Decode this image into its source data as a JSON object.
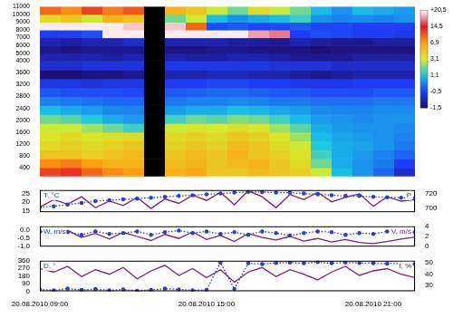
{
  "chart_data": [
    {
      "type": "heatmap",
      "x_edges": [
        9,
        9.75,
        10.5,
        11.25,
        12,
        12.75,
        13.5,
        14.25,
        15,
        15.75,
        16.5,
        17.25,
        18,
        18.75,
        19.5,
        20.25,
        21,
        21.75,
        22.5
      ],
      "y_edges": [
        100,
        400,
        700,
        1000,
        1300,
        1600,
        1900,
        2200,
        2500,
        2800,
        3100,
        3400,
        3700,
        4000,
        5000,
        6000,
        7000,
        8000,
        9000,
        10000,
        11000
      ],
      "cells": [
        [
          12,
          13,
          10,
          8,
          7,
          null,
          6,
          6.5,
          5,
          5,
          5.5,
          5,
          4.5,
          3,
          1,
          0.5,
          0,
          -0.8
        ],
        [
          8,
          9,
          7,
          6,
          6,
          null,
          5.5,
          6,
          5,
          5.5,
          6,
          5,
          4,
          2,
          0.8,
          0.5,
          0.2,
          -0.5
        ],
        [
          5,
          5,
          4.5,
          5,
          5.5,
          null,
          5,
          5.5,
          5,
          6,
          5,
          4.5,
          3.5,
          1.5,
          0.8,
          0.6,
          0.3,
          0
        ],
        [
          4,
          4.5,
          4,
          4.5,
          5,
          null,
          4.5,
          5,
          4.5,
          5.5,
          5,
          4,
          3,
          1.2,
          0.8,
          0.7,
          0.5,
          0.2
        ],
        [
          3.5,
          4,
          3.5,
          3.8,
          4,
          null,
          4,
          4.5,
          4,
          5,
          4.5,
          3.5,
          2.5,
          1,
          0.7,
          0.6,
          0.5,
          0.3
        ],
        [
          3,
          3,
          2.5,
          2,
          1.5,
          null,
          3,
          3.5,
          3.2,
          3.8,
          3.5,
          2.5,
          1.8,
          0.8,
          0.6,
          0.5,
          0.5,
          0.4
        ],
        [
          2,
          1.8,
          1.2,
          0.8,
          0.6,
          null,
          1.5,
          2,
          1.8,
          2.2,
          2,
          1.5,
          1,
          0.6,
          0.5,
          0.4,
          0.5,
          0.5
        ],
        [
          1,
          0.8,
          0.6,
          0.4,
          0.3,
          null,
          0.6,
          0.8,
          0.8,
          1,
          0.9,
          0.7,
          0.6,
          0.4,
          0.3,
          0.3,
          0.4,
          0.4
        ],
        [
          0.3,
          0.2,
          0.1,
          0,
          0,
          null,
          0.2,
          0.3,
          0.3,
          0.4,
          0.3,
          0.2,
          0.2,
          0.1,
          0.1,
          0.1,
          0.2,
          0.2
        ],
        [
          -0.2,
          -0.3,
          -0.3,
          -0.3,
          -0.4,
          null,
          -0.2,
          -0.1,
          0,
          0,
          -0.1,
          -0.2,
          -0.2,
          -0.3,
          -0.3,
          -0.3,
          -0.2,
          -0.2
        ],
        [
          -0.6,
          -0.6,
          -0.7,
          -0.6,
          -0.6,
          null,
          -0.5,
          -0.5,
          -0.4,
          -0.4,
          -0.5,
          -0.5,
          -0.6,
          -0.6,
          -0.6,
          -0.5,
          -0.5,
          -0.5
        ],
        [
          -1.4,
          -1.4,
          -1.3,
          -1.3,
          -1.2,
          null,
          -1,
          -1,
          -0.9,
          -0.9,
          -1,
          -1,
          -1.1,
          -1.2,
          -1.1,
          -1,
          -1,
          -1
        ],
        [
          -0.8,
          -0.8,
          -0.7,
          -0.7,
          -0.7,
          null,
          -0.6,
          -0.6,
          -0.6,
          -0.6,
          -0.6,
          -0.7,
          -0.7,
          -0.7,
          -0.8,
          -0.8,
          -0.8,
          -0.8
        ],
        [
          -1,
          -1,
          -1,
          -1.1,
          -1,
          null,
          -1,
          -1.1,
          -1.1,
          -1,
          -1,
          -1.1,
          -1.2,
          -1.2,
          -1.2,
          -1.1,
          -1.1,
          -1.1
        ],
        [
          -1.2,
          -1.3,
          -1.2,
          -1.2,
          -1.2,
          null,
          -1.3,
          -1.3,
          -1.2,
          -1.2,
          -1.3,
          -1.3,
          -1.3,
          -1.4,
          -1.3,
          -1.3,
          -1.3,
          -1.3
        ],
        [
          -1,
          -1.1,
          -1,
          -1,
          -0.8,
          null,
          -1,
          -1,
          -1,
          -1.1,
          -1.1,
          -1.2,
          -1,
          -1.1,
          -1.2,
          -1.2,
          -1.1,
          -1.1
        ],
        [
          -0.5,
          -0.5,
          -0.3,
          20,
          20,
          null,
          20,
          20,
          20,
          20,
          18,
          17,
          -0.5,
          -0.3,
          -0.4,
          -0.5,
          -0.5,
          -0.6
        ],
        [
          20,
          20,
          20,
          20,
          19,
          null,
          19,
          10,
          -0.3,
          -0.2,
          -0.4,
          -0.3,
          -0.2,
          -0.4,
          -0.4,
          -0.5,
          -0.5,
          -0.5
        ],
        [
          4,
          5,
          3,
          6,
          5,
          null,
          2,
          3,
          1,
          0.5,
          0.8,
          1,
          1.5,
          0.5,
          0.3,
          0.4,
          0.3,
          0.5
        ],
        [
          10,
          8,
          12,
          9,
          11,
          null,
          6,
          5,
          3,
          2,
          4,
          3,
          2,
          1,
          0.5,
          1,
          0.8,
          0.6
        ]
      ],
      "xlim": [
        9,
        22.5
      ],
      "ylim": [
        100,
        11000
      ],
      "yticks": [
        400,
        800,
        1200,
        1600,
        2000,
        2400,
        2800,
        3200,
        3600,
        4000,
        5000,
        6000,
        7000,
        8000,
        9000,
        10000,
        11000
      ],
      "tick_labels": "y",
      "grid": false,
      "colorbar": {
        "range": [
          -1.5,
          20.5
        ],
        "ticks": [
          {
            "value": -1.5,
            "label": "-1,5"
          },
          {
            "value": -0.5,
            "label": "-0,5"
          },
          {
            "value": 1.1,
            "label": "1,1"
          },
          {
            "value": 3.1,
            "label": "3,1"
          },
          {
            "value": 6.9,
            "label": "6,9"
          },
          {
            "value": 14.5,
            "label": "14,5"
          },
          {
            "value": 20.5,
            "label": "+20,5"
          }
        ],
        "colors": [
          "#1c0b66",
          "#1f3df5",
          "#19c6e6",
          "#d6ec2e",
          "#ffa012",
          "#e4162c",
          "#ffffff"
        ]
      }
    },
    {
      "type": "line",
      "x": [
        9,
        9.5,
        10,
        10.5,
        11,
        11.5,
        12,
        12.5,
        13,
        13.5,
        14,
        14.5,
        15,
        15.5,
        16,
        16.5,
        17,
        17.5,
        18,
        18.5,
        19,
        19.5,
        20,
        20.5,
        21,
        21.5,
        22,
        22.5
      ],
      "xlim": [
        9,
        22.5
      ],
      "ylim": [
        14,
        27
      ],
      "yticks": [
        15,
        20,
        25
      ],
      "y2lim": [
        695,
        725
      ],
      "y2ticks": [
        700,
        720
      ],
      "grid": false,
      "series": [
        {
          "name": "T, °C",
          "color": "#2a3cd0",
          "marker": "circle",
          "line_style": "dotted",
          "values": [
            17,
            17.5,
            18.5,
            19.5,
            20.5,
            21,
            21.5,
            22,
            22.5,
            23,
            23.5,
            24,
            24.5,
            25,
            25.5,
            26,
            25.8,
            25.5,
            25.5,
            25,
            24.5,
            24,
            23.5,
            23.5,
            23,
            22.8,
            22.5,
            22.3
          ]
        },
        {
          "name": "P",
          "color": "#7b1f7b",
          "marker": "none",
          "line_style": "solid",
          "axis": "y2",
          "values": [
            702,
            712,
            706,
            716,
            701,
            710,
            704,
            715,
            700,
            713,
            707,
            718,
            711,
            722,
            705,
            724,
            716,
            701,
            719,
            712,
            722,
            709,
            715,
            720,
            703,
            716,
            710,
            712
          ]
        }
      ]
    },
    {
      "type": "line",
      "x": [
        9,
        9.5,
        10,
        10.5,
        11,
        11.5,
        12,
        12.5,
        13,
        13.5,
        14,
        14.5,
        15,
        15.5,
        16,
        16.5,
        17,
        17.5,
        18,
        18.5,
        19,
        19.5,
        20,
        20.5,
        21,
        21.5,
        22,
        22.5
      ],
      "xlim": [
        9,
        22.5
      ],
      "ylim": [
        -1,
        0.2
      ],
      "yticks": [
        {
          "value": -1,
          "label": "-1.0"
        },
        -0.5,
        {
          "value": 0,
          "label": "0.0"
        }
      ],
      "y2lim": [
        0,
        4
      ],
      "y2ticks": [
        0,
        2,
        4
      ],
      "grid": false,
      "series": [
        {
          "name": "W, m/s",
          "color": "#2a3cd0",
          "marker": "circle",
          "line_style": "dotted",
          "values": [
            -0.1,
            -0.2,
            -0.15,
            -0.3,
            -0.1,
            -0.25,
            -0.2,
            -0.1,
            -0.3,
            -0.15,
            -0.05,
            -0.2,
            -0.1,
            -0.25,
            -0.15,
            -0.3,
            -0.1,
            -0.2,
            -0.35,
            -0.2,
            -0.1,
            -0.15,
            -0.3,
            -0.2,
            -0.25,
            -0.1,
            -0.2,
            -0.15
          ]
        },
        {
          "name": "V, m/s",
          "color": "#7b1f7b",
          "marker": "none",
          "line_style": "solid",
          "axis": "y2",
          "values": [
            3,
            2.5,
            3.2,
            1.8,
            2.6,
            1.5,
            2.8,
            2,
            1.2,
            2.4,
            1.6,
            2.9,
            1.4,
            2.2,
            1,
            2.6,
            1.8,
            1.3,
            2,
            1.1,
            1.6,
            0.9,
            1.4,
            0.8,
            0.6,
            1,
            1.5,
            1.9
          ]
        }
      ]
    },
    {
      "type": "line",
      "x": [
        9,
        9.5,
        10,
        10.5,
        11,
        11.5,
        12,
        12.5,
        13,
        13.5,
        14,
        14.5,
        15,
        15.5,
        16,
        16.5,
        17,
        17.5,
        18,
        18.5,
        19,
        19.5,
        20,
        20.5,
        21,
        21.5,
        22,
        22.5
      ],
      "xlim": [
        9,
        22.5
      ],
      "xticks": [
        {
          "value": 9,
          "label": "20.08.2010 09:00"
        },
        {
          "value": 15,
          "label": "20.08.2010 15:00"
        },
        {
          "value": 21,
          "label": "20.08.2010 21:00"
        }
      ],
      "ylim": [
        0,
        360
      ],
      "yticks": [
        0,
        90,
        180,
        270,
        360
      ],
      "y2lim": [
        25,
        52
      ],
      "y2ticks": [
        30,
        40,
        50
      ],
      "grid": false,
      "series": [
        {
          "name": "D, °",
          "color": "#2a3cd0",
          "marker": "circle",
          "line_style": "dotted",
          "values": [
            20,
            10,
            30,
            15,
            25,
            10,
            20,
            5,
            15,
            30,
            20,
            10,
            15,
            340,
            25,
            330,
            320,
            335,
            340,
            330,
            345,
            330,
            340,
            335,
            330,
            325,
            330,
            320
          ]
        },
        {
          "name": "f, %",
          "color": "#7b1f7b",
          "marker": "none",
          "line_style": "solid",
          "axis": "y2",
          "values": [
            45,
            42,
            47,
            38,
            44,
            40,
            46,
            36,
            43,
            48,
            39,
            45,
            37,
            44,
            33,
            42,
            46,
            38,
            44,
            40,
            35,
            42,
            47,
            39,
            43,
            45,
            40,
            37
          ]
        }
      ]
    }
  ]
}
